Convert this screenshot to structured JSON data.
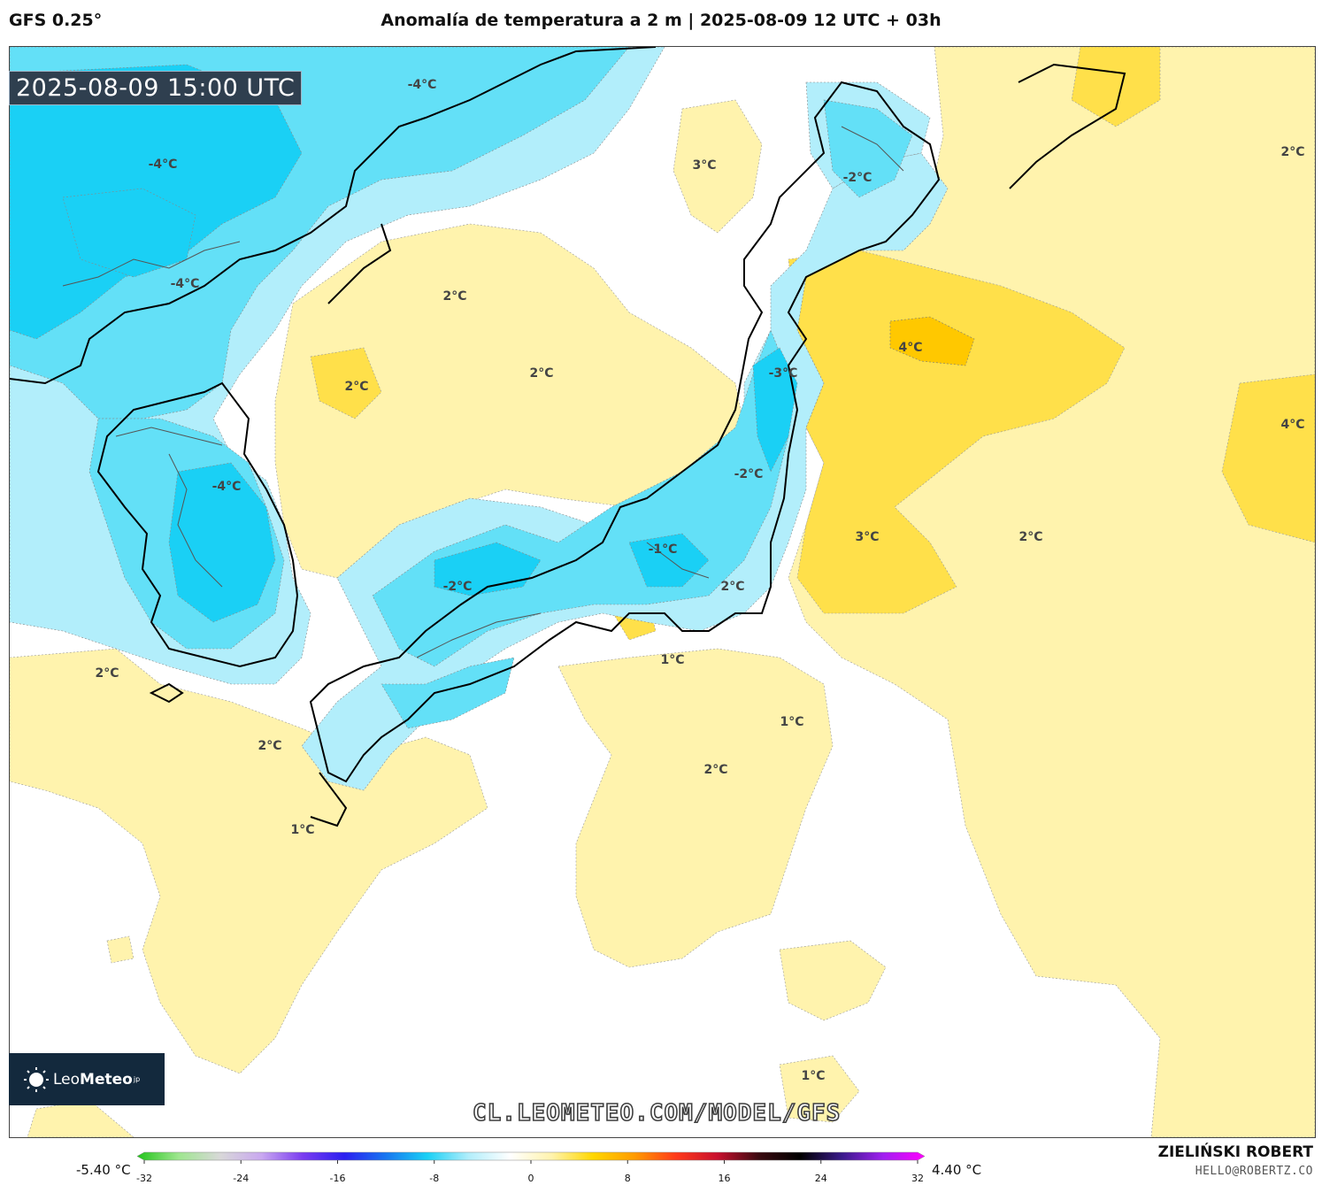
{
  "header": {
    "model": "GFS 0.25°",
    "title": "Anomalía de temperatura a 2 m | 2025-08-09 12 UTC + 03h"
  },
  "map": {
    "valid_time": "2025-08-09 15:00 UTC",
    "watermark": "CL.LEOMETEO.COM/MODEL/GFS",
    "logo": {
      "brand_light": "Leo",
      "brand_bold": "Meteo",
      "suffix": "jp"
    },
    "contour_labels": [
      {
        "text": "-4°C"
      },
      {
        "text": "-4°C"
      },
      {
        "text": "-4°C"
      },
      {
        "text": "-4°C"
      },
      {
        "text": "3°C"
      },
      {
        "text": "-2°C"
      },
      {
        "text": "2°C"
      },
      {
        "text": "2°C"
      },
      {
        "text": "2°C"
      },
      {
        "text": "2°C"
      },
      {
        "text": "4°C"
      },
      {
        "text": "-3°C"
      },
      {
        "text": "4°C"
      },
      {
        "text": "-2°C"
      },
      {
        "text": "3°C"
      },
      {
        "text": "2°C"
      },
      {
        "text": "-1°C"
      },
      {
        "text": "2°C"
      },
      {
        "text": "-2°C"
      },
      {
        "text": "1°C"
      },
      {
        "text": "2°C"
      },
      {
        "text": "1°C"
      },
      {
        "text": "2°C"
      },
      {
        "text": "2°C"
      },
      {
        "text": "1°C"
      },
      {
        "text": "1°C"
      }
    ],
    "colors": {
      "cold_strong": "#1ad0f5",
      "cold_mid": "#63e0f7",
      "cold_light": "#b2eefb",
      "cold_faint": "#e6f5fb",
      "warm_light": "#fff3ad",
      "warm_mid": "#ffe04a",
      "warm_strong": "#ffc800",
      "land_outline": "#000000"
    }
  },
  "colorbar": {
    "min_label": "-5.40 °C",
    "max_label": "4.40 °C",
    "ticks": [
      "-32",
      "-24",
      "-16",
      "-8",
      "0",
      "8",
      "16",
      "24",
      "32"
    ],
    "range": [
      -32,
      32
    ],
    "colors": [
      "#22c41a",
      "#9ee68f",
      "#d8d8d8",
      "#c9a8f0",
      "#7a3cf0",
      "#2b1ff0",
      "#1776f0",
      "#1ad0f5",
      "#b2eefb",
      "#ffffff",
      "#fff3ad",
      "#ffd700",
      "#ff9b00",
      "#ff3a1a",
      "#c8102e",
      "#3a0a10",
      "#000000",
      "#3a1a8a",
      "#a020f0",
      "#ff00ff"
    ]
  },
  "footer": {
    "author": "ZIELIŃSKI ROBERT",
    "email": "HELLO@ROBERTZ.CO"
  }
}
